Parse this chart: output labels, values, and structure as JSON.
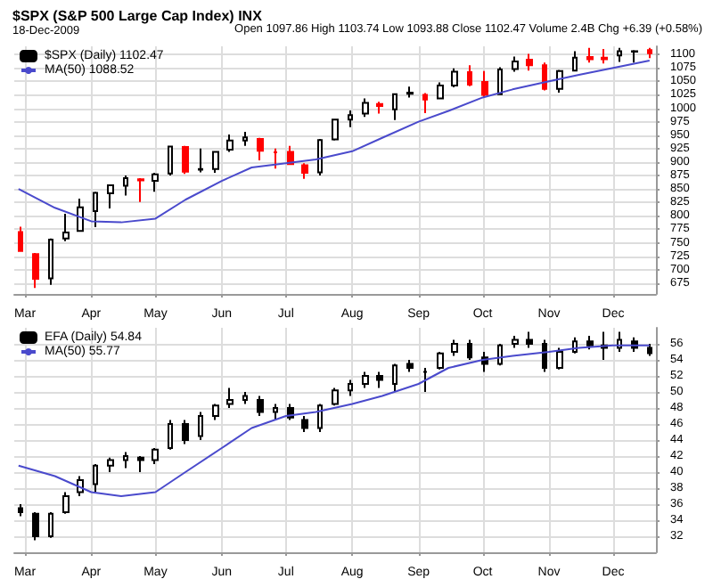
{
  "chart_data": [
    {
      "type": "candlestick",
      "title": "$SPX (S&P 500 Large Cap Index) INX",
      "subtitle": "18-Dec-2009",
      "annotations": [
        "Open 1097.86 High 1103.74 Low 1093.88 Close 1102.47 Volume 2.4B Chg +6.39 (+0.58%)"
      ],
      "x": [
        "2009-02-27",
        "2009-03-06",
        "2009-03-13",
        "2009-03-20",
        "2009-03-27",
        "2009-04-03",
        "2009-04-10",
        "2009-04-17",
        "2009-04-24",
        "2009-05-01",
        "2009-05-08",
        "2009-05-15",
        "2009-05-22",
        "2009-05-29",
        "2009-06-05",
        "2009-06-12",
        "2009-06-19",
        "2009-06-26",
        "2009-07-03",
        "2009-07-10",
        "2009-07-17",
        "2009-07-24",
        "2009-07-31",
        "2009-08-07",
        "2009-08-14",
        "2009-08-21",
        "2009-08-28",
        "2009-09-04",
        "2009-09-11",
        "2009-09-18",
        "2009-09-25",
        "2009-10-02",
        "2009-10-09",
        "2009-10-16",
        "2009-10-23",
        "2009-10-30",
        "2009-11-06",
        "2009-11-13",
        "2009-11-20",
        "2009-11-27",
        "2009-12-04",
        "2009-12-11",
        "2009-12-18"
      ],
      "series": [
        {
          "name": "$SPX (Daily) 1102.47",
          "color": "#000000",
          "colors": [
            "#ff0000",
            "#ff0000",
            "#000000",
            "#000000",
            "#000000",
            "#000000",
            "#000000",
            "#000000",
            "#ff0000",
            "#000000",
            "#000000",
            "#ff0000",
            "#000000",
            "#000000",
            "#000000",
            "#000000",
            "#ff0000",
            "#ff0000",
            "#ff0000",
            "#ff0000",
            "#000000",
            "#000000",
            "#000000",
            "#000000",
            "#ff0000",
            "#000000",
            "#000000",
            "#ff0000",
            "#000000",
            "#000000",
            "#ff0000",
            "#ff0000",
            "#000000",
            "#000000",
            "#ff0000",
            "#ff0000",
            "#000000",
            "#000000",
            "#ff0000",
            "#ff0000",
            "#000000",
            "#000000",
            "#ff0000"
          ],
          "ohlc": [
            [
              770,
              780,
              735,
              735
            ],
            [
              729,
              731,
              666,
              683
            ],
            [
              684,
              758,
              672,
              756
            ],
            [
              758,
              804,
              753,
              769
            ],
            [
              772,
              832,
              771,
              816
            ],
            [
              809,
              845,
              779,
              843
            ],
            [
              842,
              857,
              814,
              857
            ],
            [
              856,
              875,
              838,
              870
            ],
            [
              868,
              870,
              826,
              866
            ],
            [
              865,
              880,
              845,
              877
            ],
            [
              879,
              930,
              875,
              929
            ],
            [
              928,
              930,
              878,
              882
            ],
            [
              886,
              925,
              881,
              887
            ],
            [
              887,
              920,
              880,
              919
            ],
            [
              923,
              951,
              919,
              940
            ],
            [
              940,
              956,
              930,
              946
            ],
            [
              943,
              945,
              903,
              921
            ],
            [
              918,
              925,
              888,
              918
            ],
            [
              919,
              930,
              896,
              896
            ],
            [
              894,
              898,
              869,
              880
            ],
            [
              881,
              943,
              875,
              941
            ],
            [
              942,
              979,
              940,
              979
            ],
            [
              979,
              996,
              965,
              987
            ],
            [
              990,
              1018,
              984,
              1010
            ],
            [
              1008,
              1012,
              990,
              1004
            ],
            [
              998,
              1027,
              978,
              1026
            ],
            [
              1027,
              1040,
              1020,
              1029
            ],
            [
              1025,
              1028,
              991,
              1016
            ],
            [
              1018,
              1048,
              1017,
              1042
            ],
            [
              1042,
              1074,
              1039,
              1068
            ],
            [
              1067,
              1080,
              1041,
              1044
            ],
            [
              1049,
              1069,
              1020,
              1025
            ],
            [
              1026,
              1076,
              1025,
              1072
            ],
            [
              1073,
              1096,
              1068,
              1087
            ],
            [
              1090,
              1101,
              1070,
              1080
            ],
            [
              1080,
              1085,
              1033,
              1036
            ],
            [
              1036,
              1071,
              1029,
              1069
            ],
            [
              1070,
              1106,
              1069,
              1094
            ],
            [
              1095,
              1112,
              1085,
              1091
            ],
            [
              1094,
              1110,
              1083,
              1091
            ],
            [
              1098,
              1112,
              1086,
              1106
            ],
            [
              1105,
              1108,
              1085,
              1106
            ],
            [
              1108,
              1112,
              1093,
              1102
            ]
          ]
        },
        {
          "type": "line",
          "name": "MA(50) 1088.52",
          "color": "#4a4acc",
          "x": [
            "2009-02-26",
            "2009-03-15",
            "2009-04-01",
            "2009-04-15",
            "2009-05-01",
            "2009-05-15",
            "2009-06-01",
            "2009-06-15",
            "2009-07-01",
            "2009-07-15",
            "2009-08-01",
            "2009-08-15",
            "2009-09-01",
            "2009-09-15",
            "2009-10-01",
            "2009-10-15",
            "2009-11-01",
            "2009-11-15",
            "2009-12-01",
            "2009-12-18"
          ],
          "values": [
            850,
            815,
            790,
            788,
            795,
            830,
            865,
            890,
            898,
            905,
            920,
            945,
            975,
            995,
            1020,
            1035,
            1050,
            1062,
            1075,
            1088.5
          ]
        }
      ],
      "xlim": [
        "2009-02-24",
        "2009-12-21"
      ],
      "xticks": [
        {
          "value": "2009-03-01",
          "label": "Mar"
        },
        {
          "value": "2009-04-01",
          "label": "Apr"
        },
        {
          "value": "2009-05-01",
          "label": "May"
        },
        {
          "value": "2009-06-01",
          "label": "Jun"
        },
        {
          "value": "2009-07-01",
          "label": "Jul"
        },
        {
          "value": "2009-08-01",
          "label": "Aug"
        },
        {
          "value": "2009-09-01",
          "label": "Sep"
        },
        {
          "value": "2009-10-01",
          "label": "Oct"
        },
        {
          "value": "2009-11-01",
          "label": "Nov"
        },
        {
          "value": "2009-12-01",
          "label": "Dec"
        }
      ],
      "ylim": [
        655,
        1115
      ],
      "yticks": [
        675,
        700,
        725,
        750,
        775,
        800,
        825,
        850,
        875,
        900,
        925,
        950,
        975,
        1000,
        1025,
        1050,
        1075,
        1100
      ],
      "grid": true,
      "legend": "top left",
      "marker": "none"
    },
    {
      "type": "candlestick",
      "x": [
        "2009-02-27",
        "2009-03-06",
        "2009-03-13",
        "2009-03-20",
        "2009-03-27",
        "2009-04-03",
        "2009-04-10",
        "2009-04-17",
        "2009-04-24",
        "2009-05-01",
        "2009-05-08",
        "2009-05-15",
        "2009-05-22",
        "2009-05-29",
        "2009-06-05",
        "2009-06-12",
        "2009-06-19",
        "2009-06-26",
        "2009-07-03",
        "2009-07-10",
        "2009-07-17",
        "2009-07-24",
        "2009-07-31",
        "2009-08-07",
        "2009-08-14",
        "2009-08-21",
        "2009-08-28",
        "2009-09-04",
        "2009-09-11",
        "2009-09-18",
        "2009-09-25",
        "2009-10-02",
        "2009-10-09",
        "2009-10-16",
        "2009-10-23",
        "2009-10-30",
        "2009-11-06",
        "2009-11-13",
        "2009-11-20",
        "2009-11-27",
        "2009-12-04",
        "2009-12-11",
        "2009-12-18"
      ],
      "series": [
        {
          "name": "EFA (Daily) 54.84",
          "color": "#000000",
          "ohlc": [
            [
              35.5,
              36,
              34.5,
              35
            ],
            [
              34.8,
              35,
              31.5,
              32
            ],
            [
              32,
              35,
              31.8,
              34.8
            ],
            [
              35,
              37.5,
              34.8,
              37
            ],
            [
              37.5,
              39.5,
              37,
              39
            ],
            [
              38.5,
              41,
              37.5,
              40.8
            ],
            [
              40.8,
              41.8,
              40,
              41.5
            ],
            [
              41.5,
              42.5,
              40.5,
              42
            ],
            [
              41.8,
              42,
              40,
              41.5
            ],
            [
              41.5,
              43,
              41,
              42.8
            ],
            [
              43,
              46.5,
              42.8,
              46
            ],
            [
              46,
              46.5,
              43.5,
              44
            ],
            [
              44.5,
              47.5,
              44,
              47
            ],
            [
              47,
              48.5,
              46.5,
              48.3
            ],
            [
              48.5,
              50.5,
              48,
              49
            ],
            [
              49,
              50,
              48.5,
              49.5
            ],
            [
              49,
              49.5,
              47,
              47.5
            ],
            [
              47.5,
              48.5,
              46.5,
              48
            ],
            [
              48,
              48.5,
              46.5,
              46.8
            ],
            [
              46.5,
              47,
              45,
              45.5
            ],
            [
              45.5,
              48.5,
              45,
              48.3
            ],
            [
              48.5,
              50.5,
              48.3,
              50.2
            ],
            [
              50.2,
              51.5,
              49.5,
              51
            ],
            [
              51,
              52.5,
              50.5,
              52
            ],
            [
              52,
              52.5,
              50.5,
              51.5
            ],
            [
              51,
              53.5,
              50,
              53.3
            ],
            [
              53.5,
              54,
              52.5,
              53
            ],
            [
              52.5,
              53,
              50,
              52.5
            ],
            [
              53,
              55,
              52.8,
              54.8
            ],
            [
              55,
              56.5,
              54.5,
              56
            ],
            [
              56,
              56.5,
              54,
              54.3
            ],
            [
              54.3,
              55,
              52.5,
              53.5
            ],
            [
              53.5,
              56,
              53.3,
              55.8
            ],
            [
              56,
              57,
              55.5,
              56.5
            ],
            [
              56.5,
              57.5,
              55.5,
              56
            ],
            [
              56,
              56.5,
              52.5,
              53
            ],
            [
              53,
              55.5,
              52.8,
              55
            ],
            [
              55,
              56.8,
              54.8,
              56.3
            ],
            [
              56.3,
              57,
              55.3,
              55.8
            ],
            [
              55.8,
              57.5,
              54,
              55.5
            ],
            [
              55.5,
              57.5,
              55,
              56.5
            ],
            [
              56.3,
              56.8,
              55,
              55.5
            ],
            [
              55.5,
              56,
              54.5,
              54.84
            ]
          ]
        },
        {
          "type": "line",
          "name": "MA(50) 55.77",
          "color": "#4a4acc",
          "x": [
            "2009-02-26",
            "2009-03-15",
            "2009-04-01",
            "2009-04-15",
            "2009-05-01",
            "2009-05-15",
            "2009-06-01",
            "2009-06-15",
            "2009-07-01",
            "2009-07-15",
            "2009-08-01",
            "2009-08-15",
            "2009-09-01",
            "2009-09-15",
            "2009-10-01",
            "2009-10-15",
            "2009-11-01",
            "2009-11-15",
            "2009-12-01",
            "2009-12-18"
          ],
          "values": [
            40.8,
            39.5,
            37.5,
            37,
            37.5,
            40,
            43,
            45.5,
            47,
            47.5,
            48.5,
            49.5,
            51,
            53,
            54,
            54.5,
            55,
            55.5,
            55.8,
            55.8
          ]
        }
      ],
      "xlim": [
        "2009-02-24",
        "2009-12-21"
      ],
      "xticks": [
        {
          "value": "2009-03-01",
          "label": "Mar"
        },
        {
          "value": "2009-04-01",
          "label": "Apr"
        },
        {
          "value": "2009-05-01",
          "label": "May"
        },
        {
          "value": "2009-06-01",
          "label": "Jun"
        },
        {
          "value": "2009-07-01",
          "label": "Jul"
        },
        {
          "value": "2009-08-01",
          "label": "Aug"
        },
        {
          "value": "2009-09-01",
          "label": "Sep"
        },
        {
          "value": "2009-10-01",
          "label": "Oct"
        },
        {
          "value": "2009-11-01",
          "label": "Nov"
        },
        {
          "value": "2009-12-01",
          "label": "Dec"
        }
      ],
      "ylim": [
        30,
        58
      ],
      "yticks": [
        32,
        34,
        36,
        38,
        40,
        42,
        44,
        46,
        48,
        50,
        52,
        54,
        56
      ],
      "grid": true,
      "legend": "top left",
      "marker": "none"
    }
  ]
}
